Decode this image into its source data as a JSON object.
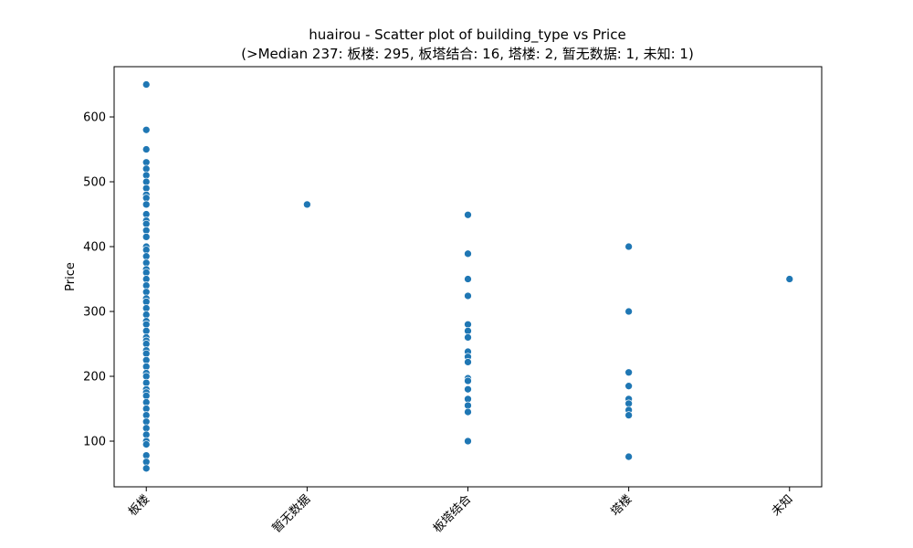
{
  "chart_data": {
    "type": "scatter",
    "title": "huairou - Scatter plot of building_type vs Price",
    "subtitle": "(>Median 237: 板楼: 295, 板塔结合: 16, 塔楼: 2, 暂无数据: 1, 未知: 1)",
    "y_label": "Price",
    "categories": [
      "板楼",
      "暂无数据",
      "板塔结合",
      "塔楼",
      "未知"
    ],
    "values": [
      [
        650,
        580,
        550,
        530,
        520,
        510,
        500,
        490,
        480,
        475,
        465,
        450,
        440,
        435,
        425,
        415,
        400,
        395,
        385,
        375,
        365,
        360,
        350,
        340,
        330,
        320,
        315,
        305,
        295,
        285,
        280,
        270,
        260,
        255,
        250,
        240,
        235,
        225,
        215,
        205,
        200,
        190,
        180,
        175,
        170,
        160,
        150,
        140,
        130,
        120,
        110,
        100,
        95,
        78,
        68,
        58
      ],
      [
        465
      ],
      [
        449,
        389,
        350,
        324,
        280,
        270,
        260,
        238,
        230,
        222,
        197,
        193,
        180,
        165,
        155,
        145,
        100
      ],
      [
        400,
        300,
        206,
        185,
        165,
        158,
        148,
        140,
        76
      ],
      [
        350
      ]
    ],
    "color": "#1f77b4",
    "ylim": [
      29.6,
      677.5
    ],
    "yticks": [
      100,
      200,
      300,
      400,
      500,
      600
    ],
    "grid": false
  }
}
